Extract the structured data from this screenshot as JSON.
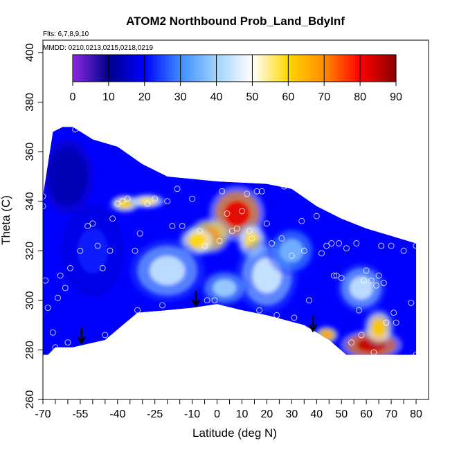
{
  "chart_data": {
    "type": "heatmap",
    "title": "ATOM2 Northbound Prob_Land_BdyInf",
    "subtitle_flights": "Flts: 6,7,8,9,10",
    "subtitle_dates": "MMDD: 0210,0213,0215,0218,0219",
    "xlabel": "Latitude (deg N)",
    "ylabel": "Theta (C)",
    "xlim": [
      -70,
      85
    ],
    "ylim": [
      260,
      405
    ],
    "x_ticks": [
      -70,
      -55,
      -40,
      -25,
      -10,
      0,
      10,
      20,
      30,
      40,
      50,
      60,
      70,
      80
    ],
    "x_ticks_labels": [
      "-70",
      "-55",
      "-40",
      "-25",
      "-10",
      "0",
      "10",
      "20",
      "30",
      "40",
      "50",
      "60",
      "70",
      "80"
    ],
    "x_minor_ticks": [
      -65,
      -60,
      -50,
      -45,
      -35,
      -30,
      -20,
      -15,
      -5,
      5,
      15,
      25,
      35,
      45,
      55,
      65,
      75
    ],
    "y_ticks": [
      260,
      280,
      300,
      320,
      340,
      360,
      380,
      400
    ],
    "y_ticks_labels": [
      "260",
      "280",
      "300",
      "320",
      "340",
      "360",
      "380",
      "400"
    ],
    "colorbar": {
      "min": 0,
      "max": 90,
      "ticks": [
        0,
        10,
        20,
        30,
        40,
        50,
        60,
        70,
        80,
        90
      ],
      "tick_labels": [
        "0",
        "10",
        "20",
        "30",
        "40",
        "50",
        "60",
        "70",
        "80",
        "90"
      ],
      "stops": [
        {
          "v": 0,
          "color": "#8a2be2"
        },
        {
          "v": 10,
          "color": "#00008b"
        },
        {
          "v": 20,
          "color": "#0000ff"
        },
        {
          "v": 30,
          "color": "#3c8cff"
        },
        {
          "v": 40,
          "color": "#a0d2ff"
        },
        {
          "v": 50,
          "color": "#ffffff"
        },
        {
          "v": 60,
          "color": "#ffd700"
        },
        {
          "v": 70,
          "color": "#ff8c00"
        },
        {
          "v": 80,
          "color": "#ff0000"
        },
        {
          "v": 90,
          "color": "#8b0000"
        }
      ]
    },
    "domain_top": [
      [
        -70,
        342
      ],
      [
        -68,
        355
      ],
      [
        -66,
        368
      ],
      [
        -62,
        370
      ],
      [
        -58,
        370
      ],
      [
        -50,
        365
      ],
      [
        -40,
        362
      ],
      [
        -30,
        355
      ],
      [
        -20,
        350
      ],
      [
        -10,
        349
      ],
      [
        0,
        348
      ],
      [
        10,
        347.5
      ],
      [
        20,
        347
      ],
      [
        30,
        345
      ],
      [
        40,
        338
      ],
      [
        50,
        333
      ],
      [
        60,
        329
      ],
      [
        70,
        326
      ],
      [
        80,
        323
      ]
    ],
    "domain_bottom": [
      [
        80,
        278
      ],
      [
        60,
        278
      ],
      [
        52,
        278
      ],
      [
        45,
        284
      ],
      [
        35,
        290
      ],
      [
        20,
        294
      ],
      [
        10,
        296
      ],
      [
        0,
        298.5
      ],
      [
        -10,
        297
      ],
      [
        -20,
        296
      ],
      [
        -32,
        295
      ],
      [
        -45,
        284
      ],
      [
        -58,
        281
      ],
      [
        -65,
        281
      ],
      [
        -68,
        278
      ],
      [
        -70,
        278
      ]
    ],
    "hotspots": [
      {
        "lat": 8,
        "theta": 335,
        "value": 82,
        "rlat": 9,
        "rtheta": 9
      },
      {
        "lat": -3,
        "theta": 326,
        "value": 68,
        "rlat": 7,
        "rtheta": 6
      },
      {
        "lat": -8,
        "theta": 324,
        "value": 60,
        "rlat": 6,
        "rtheta": 5
      },
      {
        "lat": 14,
        "theta": 324,
        "value": 58,
        "rlat": 5,
        "rtheta": 6
      },
      {
        "lat": -37,
        "theta": 339,
        "value": 60,
        "rlat": 5,
        "rtheta": 3
      },
      {
        "lat": -28,
        "theta": 340,
        "value": 56,
        "rlat": 6,
        "rtheta": 2.5
      },
      {
        "lat": 62,
        "theta": 282,
        "value": 85,
        "rlat": 10,
        "rtheta": 5
      },
      {
        "lat": 65,
        "theta": 289,
        "value": 62,
        "rlat": 5,
        "rtheta": 6
      },
      {
        "lat": 44,
        "theta": 286,
        "value": 66,
        "rlat": 4,
        "rtheta": 3
      },
      {
        "lat": -20,
        "theta": 312,
        "value": 44,
        "rlat": 12,
        "rtheta": 10
      },
      {
        "lat": 20,
        "theta": 310,
        "value": 45,
        "rlat": 10,
        "rtheta": 12
      },
      {
        "lat": 3,
        "theta": 305,
        "value": 40,
        "rlat": 8,
        "rtheta": 6
      },
      {
        "lat": 58,
        "theta": 305,
        "value": 44,
        "rlat": 8,
        "rtheta": 8
      },
      {
        "lat": 30,
        "theta": 320,
        "value": 36,
        "rlat": 8,
        "rtheta": 8
      },
      {
        "lat": -50,
        "theta": 320,
        "value": 22,
        "rlat": 10,
        "rtheta": 15
      },
      {
        "lat": -60,
        "theta": 350,
        "value": 14,
        "rlat": 8,
        "rtheta": 12
      }
    ],
    "markers": [
      {
        "lat": -54.5,
        "theta": 283
      },
      {
        "lat": -8.5,
        "theta": 298
      },
      {
        "lat": 38.5,
        "theta": 288
      }
    ],
    "points": [
      [
        -70,
        342
      ],
      [
        -70,
        338
      ],
      [
        -69,
        308
      ],
      [
        -68,
        297
      ],
      [
        -66,
        287
      ],
      [
        -65,
        281
      ],
      [
        -64,
        301
      ],
      [
        -63,
        310
      ],
      [
        -61,
        305
      ],
      [
        -60,
        283
      ],
      [
        -59,
        313
      ],
      [
        -57,
        369
      ],
      [
        -55,
        320
      ],
      [
        -52,
        330
      ],
      [
        -50,
        331
      ],
      [
        -48,
        322
      ],
      [
        -46,
        313
      ],
      [
        -45,
        286
      ],
      [
        -43,
        320
      ],
      [
        -42,
        333
      ],
      [
        -40,
        339
      ],
      [
        -38,
        340
      ],
      [
        -36,
        341
      ],
      [
        -33,
        320
      ],
      [
        -32,
        296
      ],
      [
        -31,
        327
      ],
      [
        -28,
        339
      ],
      [
        -25,
        341
      ],
      [
        -22,
        298
      ],
      [
        -20,
        340
      ],
      [
        -18,
        330
      ],
      [
        -16,
        345
      ],
      [
        -14,
        330
      ],
      [
        -10,
        341
      ],
      [
        -7,
        328
      ],
      [
        -5,
        322
      ],
      [
        -4,
        300
      ],
      [
        -1,
        300
      ],
      [
        1,
        324
      ],
      [
        2,
        344
      ],
      [
        4,
        335
      ],
      [
        6,
        328
      ],
      [
        8,
        329
      ],
      [
        10,
        336
      ],
      [
        12,
        343
      ],
      [
        13,
        328
      ],
      [
        14,
        325
      ],
      [
        16,
        344
      ],
      [
        17,
        296
      ],
      [
        18,
        344
      ],
      [
        20,
        331
      ],
      [
        22,
        323
      ],
      [
        24,
        294
      ],
      [
        26,
        325
      ],
      [
        27,
        346
      ],
      [
        30,
        318
      ],
      [
        31,
        293
      ],
      [
        34,
        332
      ],
      [
        35,
        320
      ],
      [
        37,
        300
      ],
      [
        40,
        334
      ],
      [
        42,
        319
      ],
      [
        44,
        322
      ],
      [
        46,
        323
      ],
      [
        47,
        310
      ],
      [
        48,
        310
      ],
      [
        49,
        323
      ],
      [
        50,
        309
      ],
      [
        52,
        321
      ],
      [
        54,
        283
      ],
      [
        56,
        323
      ],
      [
        57,
        296
      ],
      [
        58,
        286
      ],
      [
        59,
        308
      ],
      [
        60,
        312
      ],
      [
        62,
        308
      ],
      [
        63,
        279
      ],
      [
        64,
        306
      ],
      [
        65,
        310
      ],
      [
        66,
        322
      ],
      [
        67,
        307
      ],
      [
        68,
        291
      ],
      [
        70,
        322
      ],
      [
        71,
        295
      ],
      [
        72,
        291
      ],
      [
        75,
        320
      ],
      [
        78,
        299
      ],
      [
        80,
        322
      ],
      [
        80,
        278
      ]
    ]
  }
}
